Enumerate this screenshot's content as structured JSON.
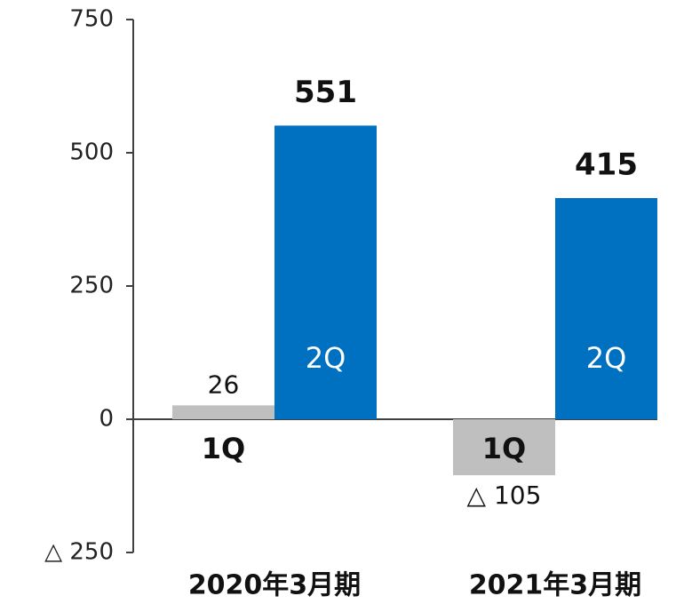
{
  "chart_data": {
    "type": "bar",
    "categories": [
      "2020年3月期",
      "2021年3月期"
    ],
    "series": [
      {
        "name": "1Q",
        "color": "#bfbfbf",
        "values": [
          26,
          -105
        ],
        "value_labels": [
          "26",
          "△ 105"
        ]
      },
      {
        "name": "2Q",
        "color": "#0070c0",
        "values": [
          551,
          415
        ]
      }
    ],
    "ylim": [
      -250,
      750
    ],
    "yticks": [
      {
        "value": -250,
        "label": "△ 250"
      },
      0,
      250,
      500,
      750
    ],
    "grid": false
  }
}
